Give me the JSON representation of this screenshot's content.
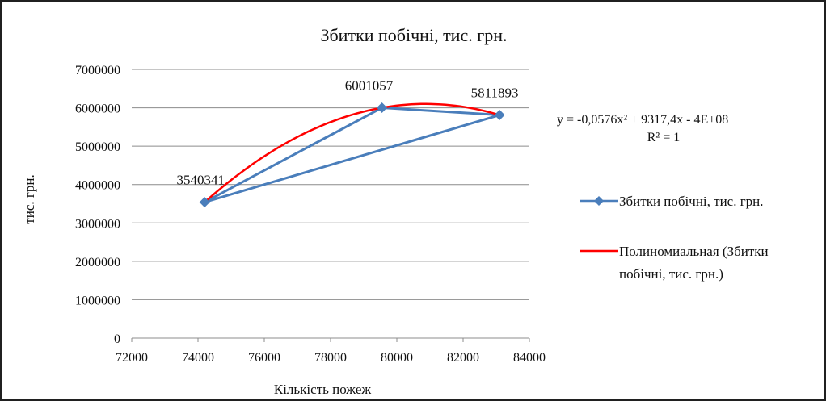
{
  "chart_data": {
    "type": "scatter",
    "title": "Збитки побічні, тис. грн.",
    "xlabel": "Кількість пожеж",
    "ylabel": "тис. грн.",
    "xlim": [
      72000,
      84000
    ],
    "ylim": [
      0,
      7000000
    ],
    "x_ticks": [
      "72000",
      "74000",
      "76000",
      "78000",
      "80000",
      "82000",
      "84000"
    ],
    "y_ticks": [
      "0",
      "1000000",
      "2000000",
      "3000000",
      "4000000",
      "5000000",
      "6000000",
      "7000000"
    ],
    "grid": true,
    "legend_position": "right",
    "series": [
      {
        "name": "Збитки побічні, тис. грн.",
        "color": "#4a7ebb",
        "marker": "diamond",
        "points": [
          {
            "x": 74200,
            "y": 3540341,
            "label": "3540341"
          },
          {
            "x": 79550,
            "y": 6001057,
            "label": "6001057"
          },
          {
            "x": 83100,
            "y": 5811893,
            "label": "5811893"
          }
        ],
        "connected_order": [
          0,
          1,
          2,
          0
        ]
      }
    ],
    "trendline": {
      "name_lines": [
        "Полиномиальная (Збитки",
        "побічні, тис. грн.)"
      ],
      "color": "#ff0000",
      "type": "polynomial",
      "equation": "y = -0,0576x² + 9317,4x - 4E+08",
      "r_squared": "R² = 1"
    }
  }
}
